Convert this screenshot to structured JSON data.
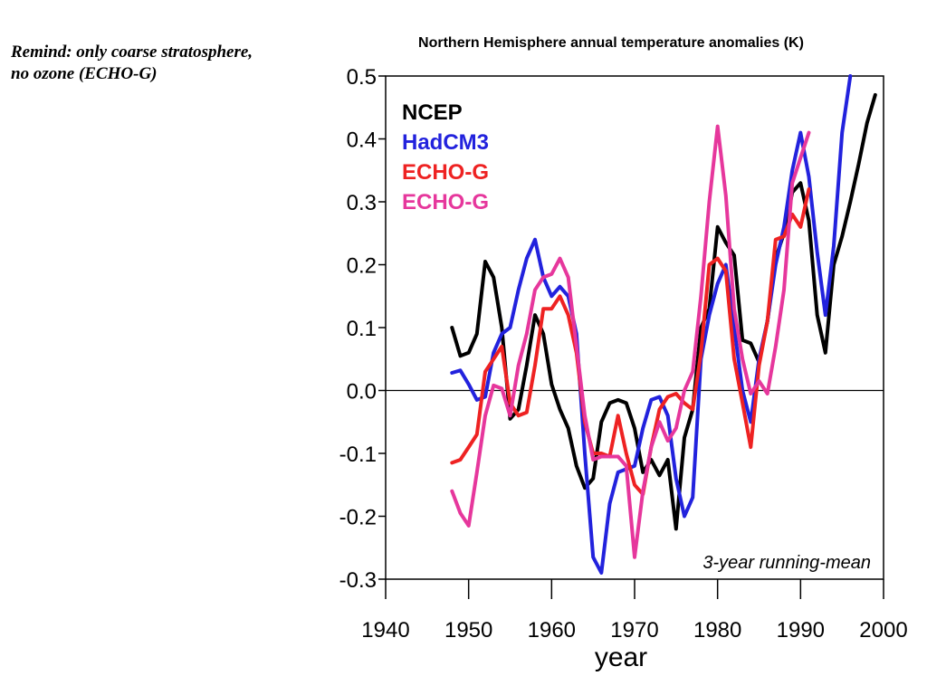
{
  "note": {
    "line1": "Remind: only coarse stratosphere,",
    "line2": "no ozone (ECHO-G)"
  },
  "chart_data": {
    "type": "line",
    "title": "Northern Hemisphere annual temperature anomalies (K)",
    "xlabel": "year",
    "ylabel": "",
    "annotation": "3-year running-mean",
    "xlim": [
      1940,
      2000
    ],
    "ylim": [
      -0.3,
      0.5
    ],
    "x_ticks": [
      1940,
      1950,
      1960,
      1970,
      1980,
      1990,
      2000
    ],
    "y_ticks": [
      0.5,
      0.4,
      0.3,
      0.2,
      0.1,
      0.0,
      -0.1,
      -0.2,
      -0.3
    ],
    "y_tick_labels": [
      "0.5",
      "0.4",
      "0.3",
      "0.2",
      "0.1",
      "0.0",
      "-0.1",
      "-0.2",
      "-0.3"
    ],
    "zero_line": true,
    "grid": false,
    "legend_position": "top-left",
    "series": [
      {
        "name": "NCEP",
        "color": "#000000",
        "x": [
          1948,
          1949,
          1950,
          1951,
          1952,
          1953,
          1954,
          1955,
          1956,
          1957,
          1958,
          1959,
          1960,
          1961,
          1962,
          1963,
          1964,
          1965,
          1966,
          1967,
          1968,
          1969,
          1970,
          1971,
          1972,
          1973,
          1974,
          1975,
          1976,
          1977,
          1978,
          1979,
          1980,
          1981,
          1982,
          1983,
          1984,
          1985,
          1986,
          1987,
          1988,
          1989,
          1990,
          1991,
          1992,
          1993,
          1994,
          1995,
          1996,
          1997,
          1998,
          1999
        ],
        "y": [
          0.1,
          0.055,
          0.06,
          0.09,
          0.205,
          0.18,
          0.1,
          -0.045,
          -0.03,
          0.04,
          0.12,
          0.09,
          0.01,
          -0.03,
          -0.06,
          -0.12,
          -0.155,
          -0.14,
          -0.05,
          -0.02,
          -0.015,
          -0.02,
          -0.06,
          -0.13,
          -0.11,
          -0.135,
          -0.11,
          -0.22,
          -0.075,
          -0.03,
          0.1,
          0.13,
          0.26,
          0.235,
          0.215,
          0.08,
          0.075,
          0.045,
          0.11,
          0.21,
          0.25,
          0.315,
          0.33,
          0.27,
          0.12,
          0.06,
          0.2,
          0.245,
          0.3,
          0.36,
          0.425,
          0.47
        ]
      },
      {
        "name": "HadCM3",
        "color": "#2222dd",
        "x": [
          1948,
          1949,
          1950,
          1951,
          1952,
          1953,
          1954,
          1955,
          1956,
          1957,
          1958,
          1959,
          1960,
          1961,
          1962,
          1963,
          1964,
          1965,
          1966,
          1967,
          1968,
          1969,
          1970,
          1971,
          1972,
          1973,
          1974,
          1975,
          1976,
          1977,
          1978,
          1979,
          1980,
          1981,
          1982,
          1983,
          1984,
          1985,
          1986,
          1987,
          1988,
          1989,
          1990,
          1991,
          1992,
          1993,
          1994,
          1995,
          1996
        ],
        "y": [
          0.028,
          0.032,
          0.01,
          -0.015,
          -0.01,
          0.06,
          0.09,
          0.1,
          0.16,
          0.21,
          0.24,
          0.18,
          0.15,
          0.165,
          0.15,
          0.09,
          -0.1,
          -0.265,
          -0.29,
          -0.18,
          -0.13,
          -0.125,
          -0.12,
          -0.06,
          -0.015,
          -0.01,
          -0.04,
          -0.14,
          -0.2,
          -0.17,
          0.05,
          0.12,
          0.17,
          0.2,
          0.1,
          0.0,
          -0.05,
          0.05,
          0.11,
          0.2,
          0.26,
          0.35,
          0.41,
          0.34,
          0.22,
          0.12,
          0.23,
          0.41,
          0.5
        ]
      },
      {
        "name": "ECHO-G",
        "color": "#ee2222",
        "x": [
          1948,
          1949,
          1950,
          1951,
          1952,
          1953,
          1954,
          1955,
          1956,
          1957,
          1958,
          1959,
          1960,
          1961,
          1962,
          1963,
          1964,
          1965,
          1966,
          1967,
          1968,
          1969,
          1970,
          1971,
          1972,
          1973,
          1974,
          1975,
          1976,
          1977,
          1978,
          1979,
          1980,
          1981,
          1982,
          1983,
          1984,
          1985,
          1986,
          1987,
          1988,
          1989,
          1990,
          1991
        ],
        "y": [
          -0.115,
          -0.11,
          -0.09,
          -0.07,
          0.03,
          0.05,
          0.07,
          -0.02,
          -0.04,
          -0.035,
          0.04,
          0.13,
          0.13,
          0.15,
          0.12,
          0.06,
          -0.05,
          -0.1,
          -0.1,
          -0.105,
          -0.04,
          -0.1,
          -0.15,
          -0.165,
          -0.09,
          -0.03,
          -0.01,
          -0.005,
          -0.02,
          -0.03,
          0.06,
          0.2,
          0.21,
          0.19,
          0.05,
          -0.02,
          -0.09,
          0.04,
          0.11,
          0.24,
          0.245,
          0.28,
          0.26,
          0.32
        ]
      },
      {
        "name": "ECHO-G",
        "color": "#e6379c",
        "x": [
          1948,
          1949,
          1950,
          1951,
          1952,
          1953,
          1954,
          1955,
          1956,
          1957,
          1958,
          1959,
          1960,
          1961,
          1962,
          1963,
          1964,
          1965,
          1966,
          1967,
          1968,
          1969,
          1970,
          1971,
          1972,
          1973,
          1974,
          1975,
          1976,
          1977,
          1978,
          1979,
          1980,
          1981,
          1982,
          1983,
          1984,
          1985,
          1986,
          1987,
          1988,
          1989,
          1990,
          1991
        ],
        "y": [
          -0.16,
          -0.195,
          -0.215,
          -0.13,
          -0.04,
          0.008,
          0.003,
          -0.04,
          0.04,
          0.09,
          0.16,
          0.18,
          0.185,
          0.21,
          0.18,
          0.07,
          -0.04,
          -0.11,
          -0.105,
          -0.105,
          -0.105,
          -0.12,
          -0.265,
          -0.16,
          -0.09,
          -0.05,
          -0.08,
          -0.06,
          0.0,
          0.03,
          0.15,
          0.3,
          0.42,
          0.31,
          0.13,
          0.05,
          -0.005,
          0.015,
          -0.005,
          0.07,
          0.16,
          0.33,
          0.37,
          0.41
        ]
      }
    ]
  }
}
